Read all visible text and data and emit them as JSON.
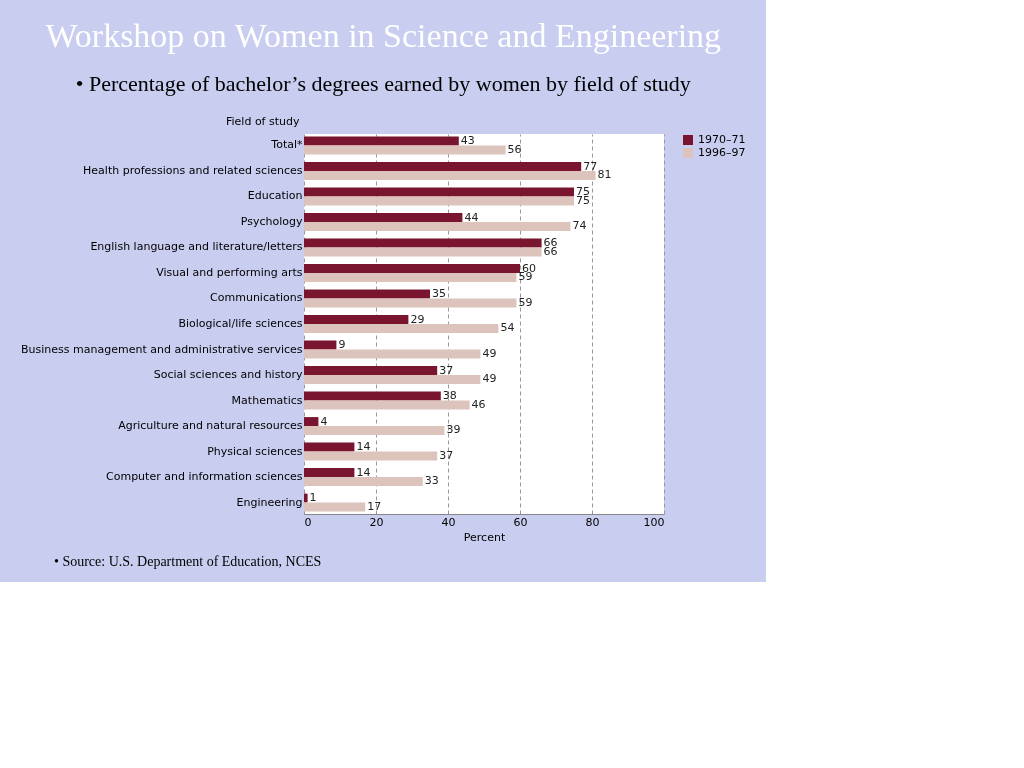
{
  "chart_data": {
    "type": "bar",
    "orientation": "horizontal",
    "title": "Workshop on Women in Science and Engineering",
    "subtitle": "• Percentage of bachelor’s degrees earned by women by field of study",
    "ylabel": "Field of study",
    "xlabel": "Percent",
    "categories": [
      "Total*",
      "Health professions and related sciences",
      "Education",
      "Psychology",
      "English language and literature/letters",
      "Visual and performing arts",
      "Communications",
      "Biological/life sciences",
      "Business management and administrative services",
      "Social sciences and history",
      "Mathematics",
      "Agriculture and natural resources",
      "Physical sciences",
      "Computer and information sciences",
      "Engineering"
    ],
    "series": [
      {
        "name": "1970–71",
        "color": "#7a1530",
        "values": [
          43,
          77,
          75,
          44,
          66,
          60,
          35,
          29,
          9,
          37,
          38,
          4,
          14,
          14,
          1
        ]
      },
      {
        "name": "1996–97",
        "color": "#dcc3bb",
        "values": [
          56,
          81,
          75,
          74,
          66,
          59,
          59,
          54,
          49,
          49,
          46,
          39,
          37,
          33,
          17
        ]
      }
    ],
    "xlim": [
      0,
      100
    ],
    "xticks": [
      0,
      20,
      40,
      60,
      80,
      100
    ],
    "grid": "x",
    "legend": "right",
    "data_labels": true,
    "annotations": [
      "• Source: U.S. Department of Education, NCES"
    ]
  }
}
